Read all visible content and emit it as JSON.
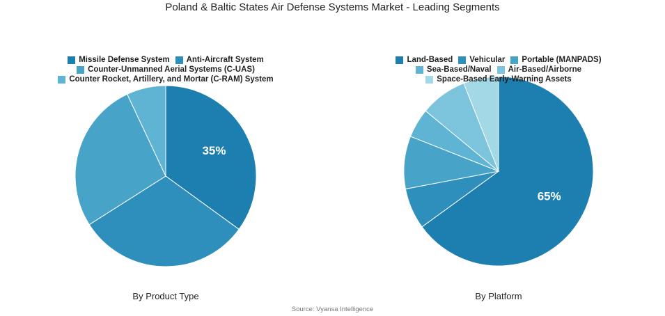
{
  "title": "Poland & Baltic States Air Defense Systems Market - Leading Segments",
  "source": "Source: Vyansa Intelligence",
  "chart_data": [
    {
      "type": "pie",
      "title": "By Product Type",
      "categories": [
        "Missile Defense System",
        "Anti-Aircraft System",
        "Counter-Unmanned Aerial Systems (C-UAS)",
        "Counter Rocket, Artillery, and Mortar (C-RAM) System"
      ],
      "values": [
        35,
        31,
        27,
        7
      ],
      "value_labels": [
        "35%",
        null,
        null,
        null
      ],
      "colors": [
        "#1d7fb0",
        "#2e8fbd",
        "#47a3c8",
        "#5fb3d3"
      ]
    },
    {
      "type": "pie",
      "title": "By Platform",
      "categories": [
        "Land-Based",
        "Vehicular",
        "Portable (MANPADS)",
        "Sea-Based/Naval",
        "Air-Based/Airborne",
        "Space-Based Early-Warning Assets"
      ],
      "values": [
        65,
        7,
        9,
        5,
        8,
        6
      ],
      "value_labels": [
        "65%",
        null,
        null,
        null,
        null,
        null
      ],
      "colors": [
        "#1d7fb0",
        "#2e8fbd",
        "#47a3c8",
        "#5fb3d3",
        "#7cc4dc",
        "#a3d8e6"
      ]
    }
  ]
}
